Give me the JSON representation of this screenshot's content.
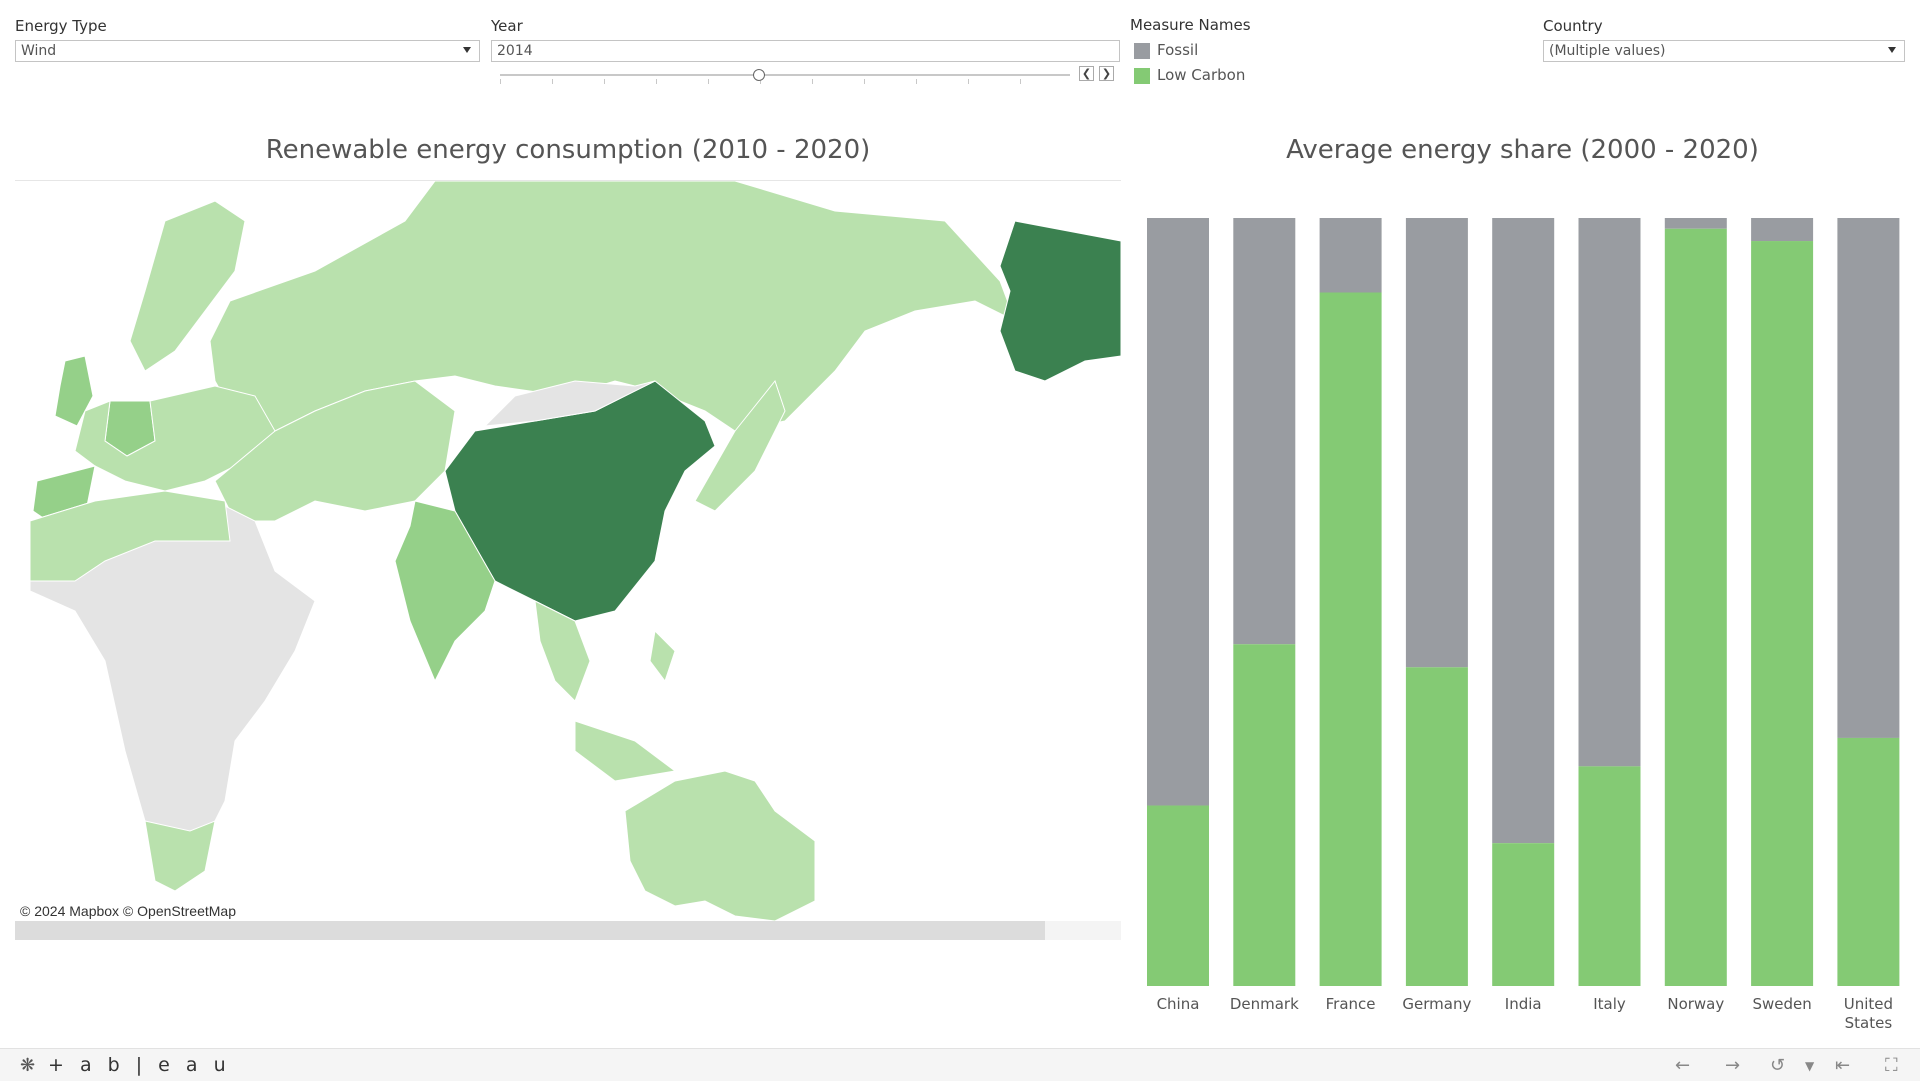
{
  "filters": {
    "energy_type": {
      "label": "Energy Type",
      "value": "Wind"
    },
    "year": {
      "label": "Year",
      "value": "2014"
    },
    "country": {
      "label": "Country",
      "value": "(Multiple values)"
    }
  },
  "legend": {
    "title": "Measure Names",
    "items": [
      {
        "label": "Fossil",
        "color": "#999ca1"
      },
      {
        "label": "Low Carbon",
        "color": "#84ca74"
      }
    ]
  },
  "map": {
    "title": "Renewable energy consumption (2010 - 2020)",
    "credit": "© 2024 Mapbox  © OpenStreetMap",
    "shades": {
      "light": "#b9e1ad",
      "mid": "#95d089",
      "dark": "#3b8150",
      "none": "#e4e4e4"
    }
  },
  "chart_data": {
    "type": "bar",
    "title": "Average energy share (2000 - 2020)",
    "stacked": true,
    "ylim": [
      0,
      100
    ],
    "categories": [
      "China",
      "Denmark",
      "France",
      "Germany",
      "India",
      "Italy",
      "Norway",
      "Sweden",
      "United States"
    ],
    "series": [
      {
        "name": "Low Carbon",
        "color": "#84ca74",
        "values": [
          23.5,
          44.5,
          90.3,
          41.5,
          18.6,
          28.6,
          98.6,
          97.0,
          32.3
        ]
      },
      {
        "name": "Fossil",
        "color": "#999ca1",
        "values": [
          76.5,
          55.5,
          9.7,
          58.5,
          81.4,
          71.4,
          1.4,
          3.0,
          67.7
        ]
      }
    ]
  },
  "footer": {
    "brand": "+ a b | e a u"
  }
}
